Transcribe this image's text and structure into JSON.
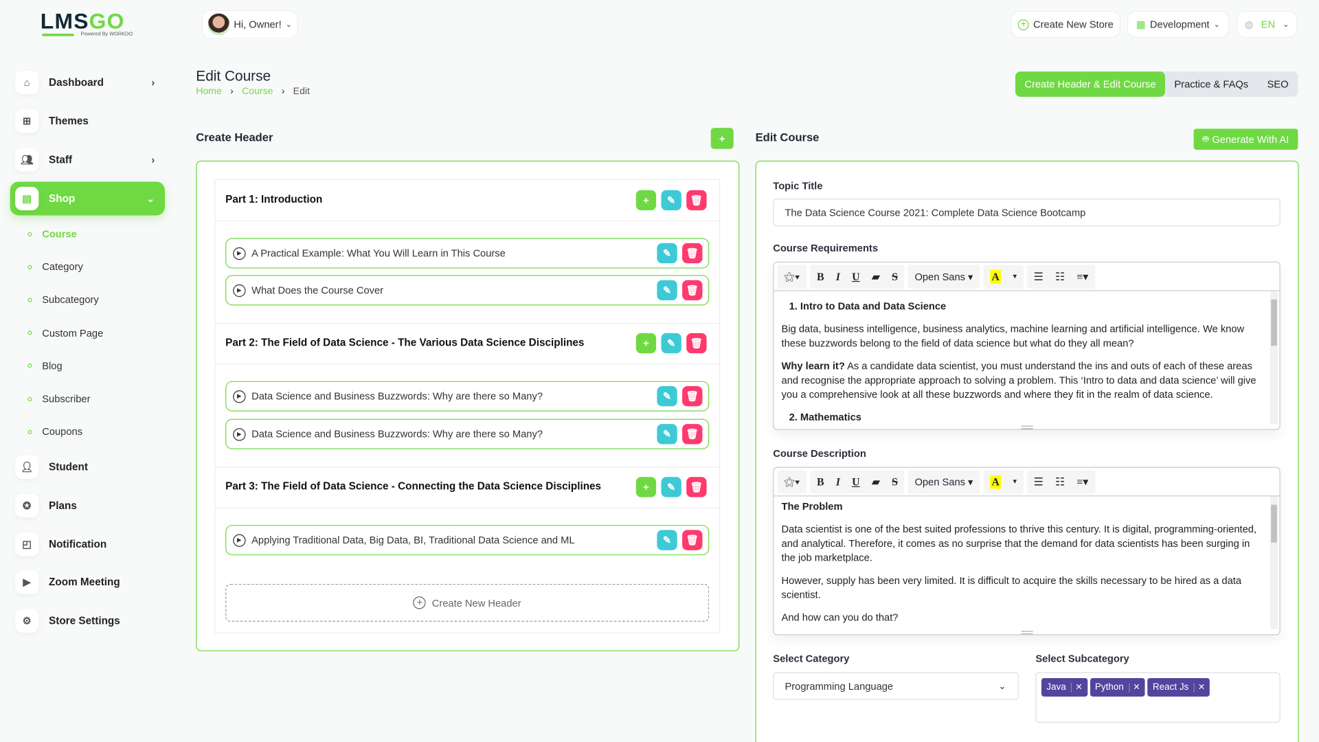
{
  "brand": {
    "logo_text": "LMSGO",
    "powered": "Powered By WORKDO"
  },
  "header": {
    "greeting": "Hi, Owner!",
    "create_store": "Create New Store",
    "workspace": "Development",
    "language": "EN"
  },
  "sidebar": {
    "items": [
      {
        "label": "Dashboard",
        "icon": "home-icon",
        "chevron": true
      },
      {
        "label": "Themes",
        "icon": "grid-icon",
        "chevron": false
      },
      {
        "label": "Staff",
        "icon": "users-icon",
        "chevron": true
      },
      {
        "label": "Shop",
        "icon": "shop-icon",
        "active": true,
        "expanded": true
      },
      {
        "label": "Student",
        "icon": "user-icon"
      },
      {
        "label": "Plans",
        "icon": "award-icon"
      },
      {
        "label": "Notification",
        "icon": "notification-icon"
      },
      {
        "label": "Zoom Meeting",
        "icon": "video-icon"
      },
      {
        "label": "Store Settings",
        "icon": "settings-icon"
      }
    ],
    "shop_sub": [
      "Course",
      "Category",
      "Subcategory",
      "Custom Page",
      "Blog",
      "Subscriber",
      "Coupons"
    ],
    "active_sub": "Course"
  },
  "page": {
    "title": "Edit Course",
    "breadcrumb": [
      "Home",
      "Course",
      "Edit"
    ],
    "tabs": [
      {
        "label": "Create Header & Edit Course",
        "active": true
      },
      {
        "label": "Practice & FAQs"
      },
      {
        "label": "SEO"
      }
    ]
  },
  "left": {
    "title": "Create Header",
    "add_icon": "+",
    "create_new": "Create New Header",
    "parts": [
      {
        "title": "Part 1: Introduction",
        "items": [
          "A Practical Example: What You Will Learn in This Course",
          "What Does the Course Cover"
        ]
      },
      {
        "title": "Part 2: The Field of Data Science - The Various Data Science Disciplines",
        "items": [
          "Data Science and Business Buzzwords: Why are there so Many?",
          "Data Science and Business Buzzwords: Why are there so Many?"
        ]
      },
      {
        "title": "Part 3: The Field of Data Science - Connecting the Data Science Disciplines",
        "items": [
          "Applying Traditional Data, Big Data, BI, Traditional Data Science and ML"
        ]
      }
    ]
  },
  "right": {
    "title": "Edit Course",
    "ai_button": "Generate With AI",
    "topic_label": "Topic Title",
    "topic_value": "The Data Science Course 2021: Complete Data Science Bootcamp",
    "toolbar": {
      "font": "Open Sans",
      "bold": "B",
      "italic": "I",
      "underline": "U",
      "strike": "S",
      "color": "A"
    },
    "req_label": "Course Requirements",
    "req": {
      "h": "1. Intro to Data and Data Science",
      "p1": "Big data, business intelligence, business analytics, machine learning and artificial intelligence. We know these buzzwords belong to the field of data science but what do they all mean?",
      "p2b": "Why learn it?",
      "p2": " As a candidate data scientist, you must understand the ins and outs of each of these areas and recognise the appropriate approach to solving a problem. This ‘Intro to data and data science’ will give you a comprehensive look at all these buzzwords and where they fit in the realm of data science.",
      "h2": "2. Mathematics"
    },
    "desc_label": "Course Description",
    "desc": {
      "h": "The Problem",
      "p1": "Data scientist is one of the best suited professions to thrive this century. It is digital, programming-oriented, and analytical. Therefore, it comes as no surprise that the demand for data scientists has been surging in the job marketplace.",
      "p2": "However, supply has been very limited. It is difficult to acquire the skills necessary to be hired as a data scientist.",
      "p3": "And how can you do that?"
    },
    "cat_label": "Select Category",
    "cat_value": "Programming Language",
    "subcat_label": "Select Subcategory",
    "subcats": [
      "Java",
      "Python",
      "React Js"
    ]
  },
  "colors": {
    "accent": "#6fd943",
    "edit": "#3ec9d6",
    "delete": "#ff3a6e",
    "tag": "#51459d"
  }
}
